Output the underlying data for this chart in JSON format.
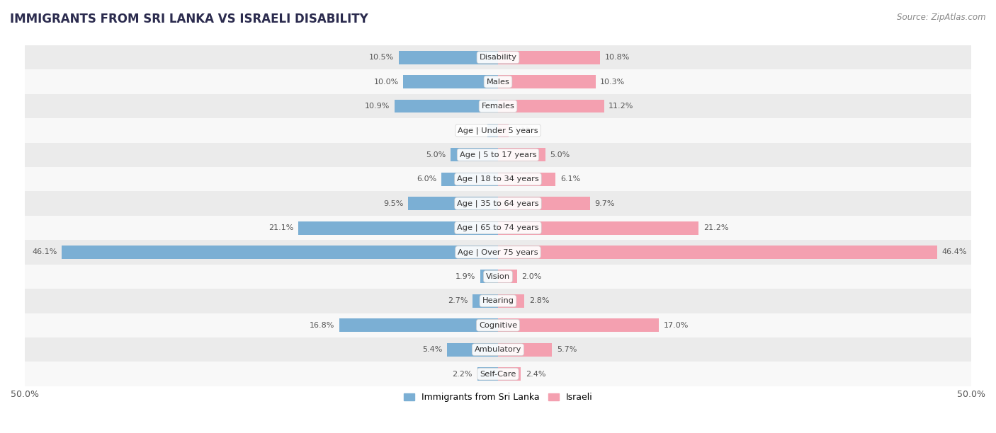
{
  "title": "IMMIGRANTS FROM SRI LANKA VS ISRAELI DISABILITY",
  "source": "Source: ZipAtlas.com",
  "categories": [
    "Disability",
    "Males",
    "Females",
    "Age | Under 5 years",
    "Age | 5 to 17 years",
    "Age | 18 to 34 years",
    "Age | 35 to 64 years",
    "Age | 65 to 74 years",
    "Age | Over 75 years",
    "Vision",
    "Hearing",
    "Cognitive",
    "Ambulatory",
    "Self-Care"
  ],
  "sri_lanka_values": [
    10.5,
    10.0,
    10.9,
    1.1,
    5.0,
    6.0,
    9.5,
    21.1,
    46.1,
    1.9,
    2.7,
    16.8,
    5.4,
    2.2
  ],
  "israeli_values": [
    10.8,
    10.3,
    11.2,
    1.1,
    5.0,
    6.1,
    9.7,
    21.2,
    46.4,
    2.0,
    2.8,
    17.0,
    5.7,
    2.4
  ],
  "sri_lanka_color": "#7bafd4",
  "israeli_color": "#f4a0b0",
  "axis_max": 50.0,
  "bg_color_odd": "#ebebeb",
  "bg_color_even": "#f8f8f8",
  "legend_labels": [
    "Immigrants from Sri Lanka",
    "Israeli"
  ]
}
